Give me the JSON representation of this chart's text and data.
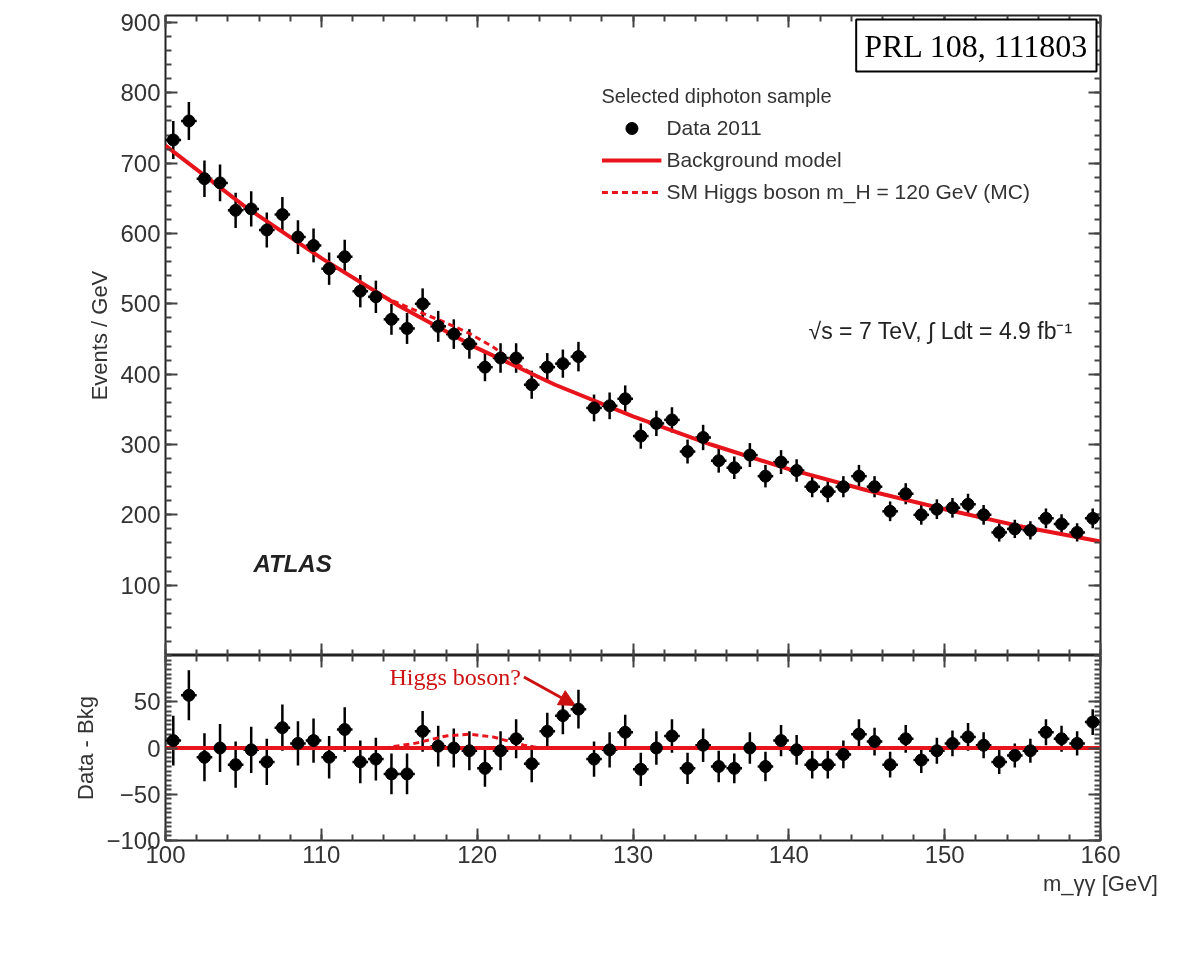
{
  "chart_data": [
    {
      "type": "scatter",
      "ylabel": "Events / GeV",
      "legend_title": "Selected diphoton sample",
      "legend": "top right",
      "tick_labels": "y",
      "grid": false,
      "xlim": [
        100,
        160
      ],
      "xticks": [
        100,
        110,
        120,
        130,
        140,
        150,
        160
      ],
      "ylim": [
        0,
        910
      ],
      "yticks": [
        100,
        200,
        300,
        400,
        500,
        600,
        700,
        800,
        900
      ],
      "annotations": [
        "√s = 7 TeV, ∫ Ldt = 4.9 fb⁻¹",
        "ATLAS",
        "PRL 108, 111803"
      ],
      "series": [
        {
          "name": "Data 2011",
          "marker": "circle",
          "xerrors": [
            0.5,
            0.5,
            0.5,
            0.5,
            0.5,
            0.5,
            0.5,
            0.5,
            0.5,
            0.5,
            0.5,
            0.5,
            0.5,
            0.5,
            0.5,
            0.5,
            0.5,
            0.5,
            0.5,
            0.5,
            0.5,
            0.5,
            0.5,
            0.5,
            0.5,
            0.5,
            0.5,
            0.5,
            0.5,
            0.5,
            0.5,
            0.5,
            0.5,
            0.5,
            0.5,
            0.5,
            0.5,
            0.5,
            0.5,
            0.5,
            0.5,
            0.5,
            0.5,
            0.5,
            0.5,
            0.5,
            0.5,
            0.5,
            0.5,
            0.5,
            0.5,
            0.5,
            0.5,
            0.5,
            0.5,
            0.5,
            0.5,
            0.5,
            0.5,
            0.5
          ],
          "color": "#000000",
          "x": [
            100.5,
            101.5,
            102.5,
            103.5,
            104.5,
            105.5,
            106.5,
            107.5,
            108.5,
            109.5,
            110.5,
            111.5,
            112.5,
            113.5,
            114.5,
            115.5,
            116.5,
            117.5,
            118.5,
            119.5,
            120.5,
            121.5,
            122.5,
            123.5,
            124.5,
            125.5,
            126.5,
            127.5,
            128.5,
            129.5,
            130.5,
            131.5,
            132.5,
            133.5,
            134.5,
            135.5,
            136.5,
            137.5,
            138.5,
            139.5,
            140.5,
            141.5,
            142.5,
            143.5,
            144.5,
            145.5,
            146.5,
            147.5,
            148.5,
            149.5,
            150.5,
            151.5,
            152.5,
            153.5,
            154.5,
            155.5,
            156.5,
            157.5,
            158.5,
            159.5
          ],
          "values": [
            733,
            760,
            678,
            672,
            633,
            635,
            605,
            627,
            595,
            583,
            550,
            567,
            518,
            510,
            478,
            465,
            500,
            468,
            457,
            443,
            410,
            423,
            423,
            385,
            410,
            415,
            425,
            352,
            355,
            365,
            312,
            330,
            335,
            290,
            310,
            277,
            267,
            285,
            255,
            275,
            263,
            240,
            233,
            240,
            255,
            240,
            205,
            230,
            200,
            208,
            210,
            215,
            200,
            175,
            180,
            178,
            195,
            187,
            175,
            195
          ],
          "errors": [
            27,
            27,
            26,
            26,
            25,
            25,
            25,
            25,
            24,
            24,
            23,
            24,
            23,
            23,
            22,
            22,
            22,
            22,
            21,
            21,
            20,
            21,
            21,
            20,
            20,
            20,
            21,
            19,
            19,
            19,
            18,
            18,
            18,
            17,
            18,
            17,
            16,
            17,
            16,
            17,
            16,
            15,
            15,
            15,
            16,
            15,
            14,
            15,
            14,
            14,
            14,
            15,
            14,
            13,
            13,
            13,
            14,
            14,
            13,
            14
          ]
        },
        {
          "name": "Background model",
          "type": "line",
          "line_style": "solid",
          "color": "#e8141c",
          "x": [
            100,
            105,
            110,
            115,
            120,
            125,
            130,
            135,
            140,
            145,
            150,
            155,
            160
          ],
          "values": [
            725,
            640,
            565,
            497,
            437,
            385,
            340,
            300,
            265,
            235,
            208,
            183,
            162
          ]
        },
        {
          "name": "SM Higgs boson m_H = 120 GeV (MC)",
          "type": "line",
          "line_style": "dashed",
          "color": "#e8141c",
          "x": [
            114,
            116,
            118,
            119.5,
            121,
            123,
            124
          ],
          "values": [
            510,
            491,
            473,
            458,
            439,
            408,
            395
          ]
        }
      ]
    },
    {
      "type": "scatter",
      "xlabel": "m_γγ [GeV]",
      "ylabel": "Data - Bkg",
      "legend": false,
      "grid": false,
      "xlim": [
        100,
        160
      ],
      "xticks": [
        100,
        110,
        120,
        130,
        140,
        150,
        160
      ],
      "ylim": [
        -100,
        100
      ],
      "yticks": [
        -100,
        -50,
        0,
        50
      ],
      "annotations": [
        {
          "text": "Higgs boson?",
          "x": 126.5,
          "y": 42
        }
      ],
      "series": [
        {
          "marker": "circle",
          "xerrors": [
            0.5,
            0.5,
            0.5,
            null,
            0.5,
            0.5,
            0.5,
            0.5,
            0.5,
            0.5,
            0.5,
            0.5,
            0.5,
            0.5,
            0.5,
            0.5,
            0.5,
            0.5,
            0.5,
            0.5,
            0.5,
            0.5,
            0.5,
            0.5,
            0.5,
            0.5,
            0.5,
            0.5,
            0.5,
            0.5,
            0.5,
            null,
            0.5,
            0.5,
            0.5,
            0.5,
            0.5,
            0.5,
            0.5,
            0.5,
            0.5,
            0.5,
            0.5,
            0.5,
            0.5,
            0.5,
            0.5,
            0.5,
            0.5,
            0.5,
            0.5,
            0.5,
            0.5,
            0.5,
            0.5,
            0.5,
            0.5,
            0.5,
            0.5,
            0.5
          ],
          "color": "#000000",
          "x": [
            100.5,
            101.5,
            102.5,
            103.5,
            104.5,
            105.5,
            106.5,
            107.5,
            108.5,
            109.5,
            110.5,
            111.5,
            112.5,
            113.5,
            114.5,
            115.5,
            116.5,
            117.5,
            118.5,
            119.5,
            120.5,
            121.5,
            122.5,
            123.5,
            124.5,
            125.5,
            126.5,
            127.5,
            128.5,
            129.5,
            130.5,
            131.5,
            132.5,
            133.5,
            134.5,
            135.5,
            136.5,
            137.5,
            138.5,
            139.5,
            140.5,
            141.5,
            142.5,
            143.5,
            144.5,
            145.5,
            146.5,
            147.5,
            148.5,
            149.5,
            150.5,
            151.5,
            152.5,
            153.5,
            154.5,
            155.5,
            156.5,
            157.5,
            158.5,
            159.5
          ],
          "values": [
            8,
            57,
            -10,
            0,
            -18,
            -2,
            -15,
            22,
            5,
            8,
            -10,
            20,
            -15,
            -12,
            -28,
            -28,
            18,
            2,
            0,
            -3,
            -22,
            -3,
            10,
            -17,
            18,
            35,
            42,
            -12,
            -2,
            17,
            -23,
            0,
            13,
            -22,
            3,
            -20,
            -22,
            0,
            -20,
            8,
            -2,
            -18,
            -18,
            -7,
            15,
            7,
            -18,
            10,
            -13,
            -3,
            5,
            12,
            3,
            -15,
            -8,
            -3,
            17,
            10,
            5,
            28
          ],
          "errors": [
            27,
            27,
            26,
            26,
            25,
            25,
            25,
            25,
            24,
            24,
            23,
            24,
            23,
            23,
            22,
            22,
            22,
            22,
            21,
            21,
            20,
            21,
            21,
            20,
            20,
            20,
            21,
            19,
            19,
            19,
            18,
            18,
            18,
            17,
            18,
            17,
            16,
            17,
            16,
            17,
            16,
            15,
            15,
            15,
            16,
            15,
            14,
            15,
            14,
            14,
            14,
            15,
            14,
            13,
            13,
            13,
            14,
            14,
            13,
            14
          ]
        },
        {
          "type": "line",
          "line_style": "solid",
          "color": "#e8141c",
          "x": [
            100,
            160
          ],
          "values": [
            0,
            0
          ]
        },
        {
          "type": "line",
          "line_style": "dashed",
          "color": "#e8141c",
          "x": [
            114,
            116,
            118,
            119.5,
            121,
            123,
            124
          ],
          "values": [
            0,
            5,
            13,
            15,
            12,
            3,
            0
          ]
        }
      ]
    }
  ]
}
